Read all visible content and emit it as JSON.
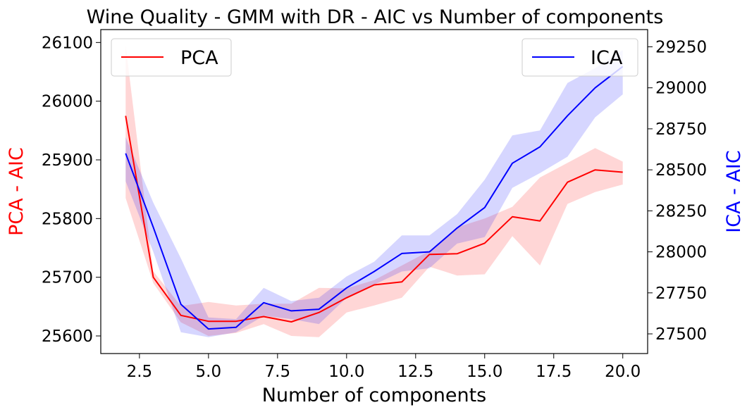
{
  "chart_data": {
    "type": "line",
    "title": "Wine Quality - GMM with DR - AIC vs Number of components",
    "xlabel": "Number of components",
    "x": [
      2,
      3,
      4,
      5,
      6,
      7,
      8,
      9,
      10,
      11,
      12,
      13,
      14,
      15,
      16,
      17,
      18,
      19,
      20
    ],
    "xlim": [
      1.1,
      20.9
    ],
    "xticks": [
      2.5,
      5.0,
      7.5,
      10.0,
      12.5,
      15.0,
      17.5,
      20.0
    ],
    "xtick_labels": [
      "2.5",
      "5.0",
      "7.5",
      "10.0",
      "12.5",
      "15.0",
      "17.5",
      "20.0"
    ],
    "grid": false,
    "axes": {
      "left": {
        "label": "PCA - AIC",
        "color": "#ff0000",
        "ylim": [
          25570,
          26122
        ],
        "ticks": [
          25600,
          25700,
          25800,
          25900,
          26000,
          26100
        ],
        "tick_labels": [
          "25600",
          "25700",
          "25800",
          "25900",
          "26000",
          "26100"
        ]
      },
      "right": {
        "label": "ICA - AIC",
        "color": "#0000ff",
        "ylim": [
          27380,
          29355
        ],
        "ticks": [
          27500,
          27750,
          28000,
          28250,
          28500,
          28750,
          29000,
          29250
        ],
        "tick_labels": [
          "27500",
          "27750",
          "28000",
          "28250",
          "28500",
          "28750",
          "29000",
          "29250"
        ]
      }
    },
    "series": [
      {
        "name": "PCA",
        "axis": "left",
        "color": "#ff0000",
        "band_color": "#ff0000",
        "values": [
          25975,
          25700,
          25635,
          25625,
          25625,
          25633,
          25624,
          25640,
          25665,
          25687,
          25692,
          25739,
          25740,
          25758,
          25803,
          25796,
          25862,
          25883,
          25879
        ],
        "lower": [
          25835,
          25690,
          25623,
          25600,
          25605,
          25620,
          25600,
          25598,
          25640,
          25652,
          25665,
          25718,
          25703,
          25705,
          25770,
          25720,
          25825,
          25845,
          25858
        ],
        "upper": [
          26095,
          25710,
          25651,
          25658,
          25652,
          25655,
          25655,
          25682,
          25681,
          25695,
          25720,
          25745,
          25785,
          25800,
          25820,
          25870,
          25895,
          25920,
          25897
        ]
      },
      {
        "name": "ICA",
        "axis": "right",
        "color": "#0000ff",
        "band_color": "#0000ff",
        "values": [
          28600,
          28150,
          27680,
          27530,
          27540,
          27690,
          27640,
          27650,
          27780,
          27880,
          27990,
          28000,
          28145,
          28270,
          28540,
          28640,
          28830,
          29000,
          29130
        ],
        "lower": [
          28430,
          28000,
          27510,
          27480,
          27510,
          27610,
          27590,
          27560,
          27720,
          27800,
          27880,
          27900,
          28050,
          28090,
          28390,
          28480,
          28580,
          28820,
          28960
        ],
        "upper": [
          28700,
          28300,
          27960,
          27600,
          27590,
          27780,
          27700,
          27720,
          27850,
          27940,
          28100,
          28100,
          28230,
          28440,
          28710,
          28740,
          29030,
          29120,
          29230
        ]
      }
    ],
    "legends": [
      {
        "series": "PCA",
        "placement": "upper-left"
      },
      {
        "series": "ICA",
        "placement": "upper-right"
      }
    ]
  }
}
